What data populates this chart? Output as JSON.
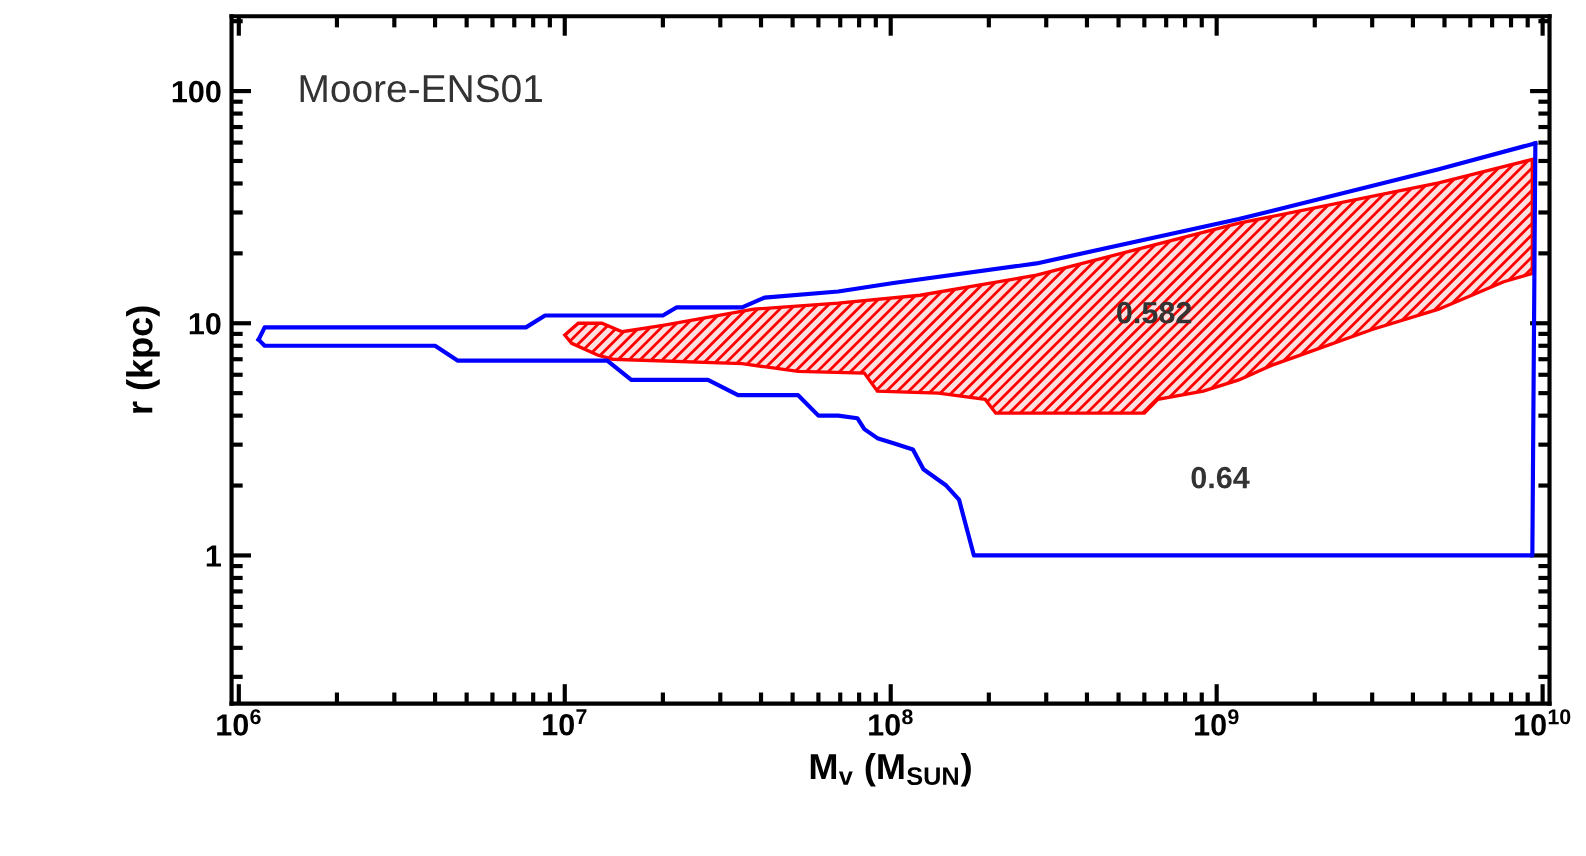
{
  "chart_data": {
    "type": "line",
    "log": "xy",
    "grid": false,
    "xlabel": "M$_{v}$ (M$_{SUN}$)",
    "ylabel": "r (kpc)",
    "xlim": [
      950000,
      10500000000
    ],
    "ylim": [
      0.23,
      210
    ],
    "xticks": [
      {
        "value": 1000000,
        "label": "10$^{6}$"
      },
      {
        "value": 10000000,
        "label": "10$^{7}$"
      },
      {
        "value": 100000000,
        "label": "10$^{8}$"
      },
      {
        "value": 1000000000,
        "label": "10$^{9}$"
      },
      {
        "value": 10000000000,
        "label": "10$^{10}$"
      }
    ],
    "yticks": [
      1,
      10,
      100
    ],
    "series": [
      {
        "color": "#0000ff",
        "x": [
          1150000,
          1200000,
          7600000,
          8700000,
          20000000,
          22000000,
          35000000,
          41000000,
          69000000,
          102000000,
          280000000,
          1170000000,
          4800000000,
          9500000000
        ],
        "values": [
          8.5,
          9.6,
          9.6,
          10.8,
          10.8,
          11.7,
          11.7,
          12.9,
          13.7,
          14.9,
          18.1,
          28.1,
          46.1,
          59.6
        ]
      },
      {
        "color": "#0000ff",
        "x": [
          1150000,
          1200000,
          4000000,
          4700000,
          13500000,
          16000000,
          27500000,
          34000000,
          52000000,
          60000000,
          69000000,
          79000000,
          83000000,
          91000000,
          102000000,
          117000000,
          126000000,
          148000000,
          162000000,
          180000000,
          9300000000,
          9500000000
        ],
        "values": [
          8.5,
          8.0,
          8.0,
          6.9,
          6.9,
          5.7,
          5.7,
          4.9,
          4.9,
          4.0,
          4.0,
          3.9,
          3.5,
          3.2,
          3.04,
          2.86,
          2.35,
          2.0,
          1.74,
          1,
          1,
          59.6
        ]
      },
      {
        "type": "area",
        "color": "#ff0000",
        "x": [
          10000000,
          11000000,
          13000000,
          15000000,
          20000000,
          38000000,
          69000000,
          123000000,
          280000000,
          1170000000,
          4800000000,
          9300000000,
          9300000000,
          7600000000,
          4800000000,
          3000000000,
          1860000000,
          1480000000,
          1170000000,
          910000000,
          660000000,
          600000000,
          210000000,
          195000000,
          140000000,
          91000000,
          83000000,
          52000000,
          35000000,
          14000000,
          12600000,
          10500000,
          10000000
        ],
        "values": [
          8.9,
          10.0,
          10.0,
          9.2,
          9.8,
          11.5,
          12.2,
          13.2,
          16.1,
          27.0,
          40.2,
          50.8,
          16.4,
          15.1,
          11.5,
          9.4,
          7.4,
          6.6,
          5.7,
          5.1,
          4.7,
          4.1,
          4.1,
          4.7,
          5.0,
          5.1,
          6.1,
          6.2,
          6.7,
          7.0,
          7.3,
          8.2,
          8.9
        ]
      }
    ],
    "annotations": [
      "Moore-ENS01",
      "0.582",
      "0.64"
    ]
  }
}
